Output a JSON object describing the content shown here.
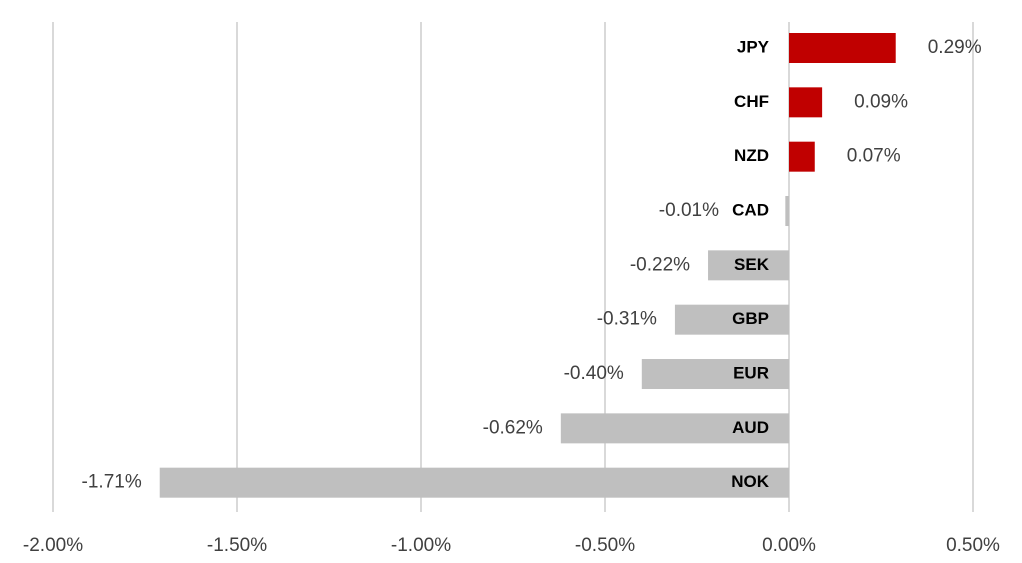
{
  "chart_data": {
    "type": "hbar",
    "categories": [
      "JPY",
      "CHF",
      "NZD",
      "CAD",
      "SEK",
      "GBP",
      "EUR",
      "AUD",
      "NOK"
    ],
    "values": [
      0.29,
      0.09,
      0.07,
      -0.01,
      -0.22,
      -0.31,
      -0.4,
      -0.62,
      -1.71
    ],
    "value_labels": [
      "0.29%",
      "0.09%",
      "0.07%",
      "-0.01%",
      "-0.22%",
      "-0.31%",
      "-0.40%",
      "-0.62%",
      "-1.71%"
    ],
    "colors": [
      "#c00000",
      "#c00000",
      "#c00000",
      "#bfbfbf",
      "#bfbfbf",
      "#bfbfbf",
      "#bfbfbf",
      "#bfbfbf",
      "#bfbfbf"
    ],
    "xlim": [
      -2,
      0.5
    ],
    "xticks": [
      {
        "value": -2,
        "label": "-2.00%"
      },
      {
        "value": -1.5,
        "label": "-1.50%"
      },
      {
        "value": -1,
        "label": "-1.00%"
      },
      {
        "value": -0.5,
        "label": "-0.50%"
      },
      {
        "value": 0,
        "label": "0.00%"
      },
      {
        "value": 0.5,
        "label": "0.50%"
      }
    ],
    "grid": true
  }
}
